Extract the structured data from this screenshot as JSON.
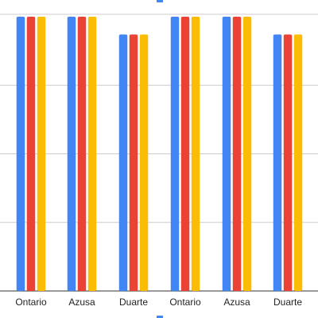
{
  "chart_data": {
    "type": "bar",
    "title": "",
    "xlabel": "",
    "ylabel": "",
    "categories": [
      "Ontario",
      "Azusa",
      "Duarte",
      "Ontario",
      "Azusa",
      "Duarte"
    ],
    "series": [
      {
        "color": "#4285f4",
        "values": [
          100,
          100,
          93.5,
          100,
          100,
          93.5
        ]
      },
      {
        "color": "#ea4335",
        "values": [
          100,
          100,
          93.5,
          100,
          100,
          93.5
        ]
      },
      {
        "color": "#fbbc04",
        "values": [
          100,
          100,
          93.5,
          100,
          100,
          93.5
        ]
      }
    ],
    "ylim": [
      0,
      100
    ],
    "grid": true,
    "legend": "top (cropped)",
    "legend_marker_color": "#4285f4"
  }
}
